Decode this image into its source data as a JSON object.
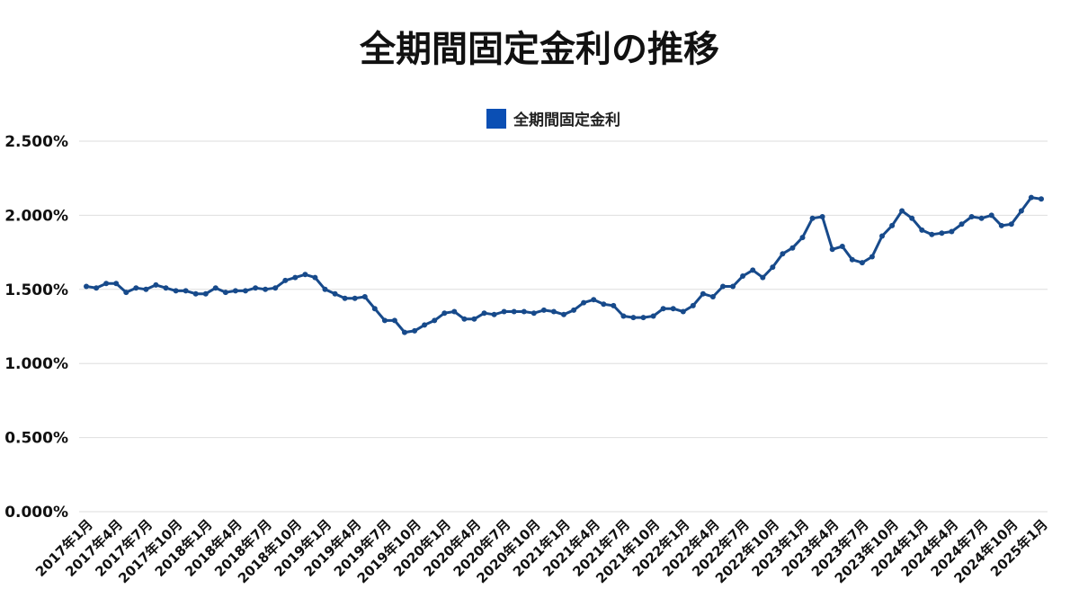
{
  "chart_data": {
    "type": "line",
    "title": "全期間固定金利の推移",
    "xlabel": "",
    "ylabel": "",
    "legend": "top-center",
    "grid": true,
    "ylim": [
      0,
      2.5
    ],
    "y_ticks": [
      "0.000%",
      "0.500%",
      "1.000%",
      "1.500%",
      "2.000%",
      "2.500%"
    ],
    "x_ticks": [
      "2017年1月",
      "2017年4月",
      "2017年7月",
      "2017年10月",
      "2018年1月",
      "2018年4月",
      "2018年7月",
      "2018年10月",
      "2019年1月",
      "2019年4月",
      "2019年7月",
      "2019年10月",
      "2020年1月",
      "2020年4月",
      "2020年7月",
      "2020年10月",
      "2021年1月",
      "2021年4月",
      "2021年7月",
      "2021年10月",
      "2022年1月",
      "2022年4月",
      "2022年7月",
      "2022年10月",
      "2023年1月",
      "2023年4月",
      "2023年7月",
      "2023年10月",
      "2024年1月",
      "2024年4月",
      "2024年7月",
      "2024年10月",
      "2025年1月"
    ],
    "series": [
      {
        "name": "全期間固定金利",
        "color": "#174a8b",
        "legend_color": "#0b4fb4",
        "values": [
          1.52,
          1.51,
          1.54,
          1.54,
          1.48,
          1.51,
          1.5,
          1.53,
          1.51,
          1.49,
          1.49,
          1.47,
          1.47,
          1.51,
          1.48,
          1.49,
          1.49,
          1.51,
          1.5,
          1.51,
          1.56,
          1.58,
          1.6,
          1.58,
          1.5,
          1.47,
          1.44,
          1.44,
          1.45,
          1.37,
          1.29,
          1.29,
          1.21,
          1.22,
          1.26,
          1.29,
          1.34,
          1.35,
          1.3,
          1.3,
          1.34,
          1.33,
          1.35,
          1.35,
          1.35,
          1.34,
          1.36,
          1.35,
          1.33,
          1.36,
          1.41,
          1.43,
          1.4,
          1.39,
          1.32,
          1.31,
          1.31,
          1.32,
          1.37,
          1.37,
          1.35,
          1.39,
          1.47,
          1.45,
          1.52,
          1.52,
          1.59,
          1.63,
          1.58,
          1.65,
          1.74,
          1.78,
          1.85,
          1.98,
          1.99,
          1.77,
          1.79,
          1.7,
          1.68,
          1.72,
          1.86,
          1.93,
          2.03,
          1.98,
          1.9,
          1.87,
          1.88,
          1.89,
          1.94,
          1.99,
          1.98,
          2.0,
          1.93,
          1.94,
          2.03,
          2.12,
          2.11
        ]
      }
    ]
  }
}
